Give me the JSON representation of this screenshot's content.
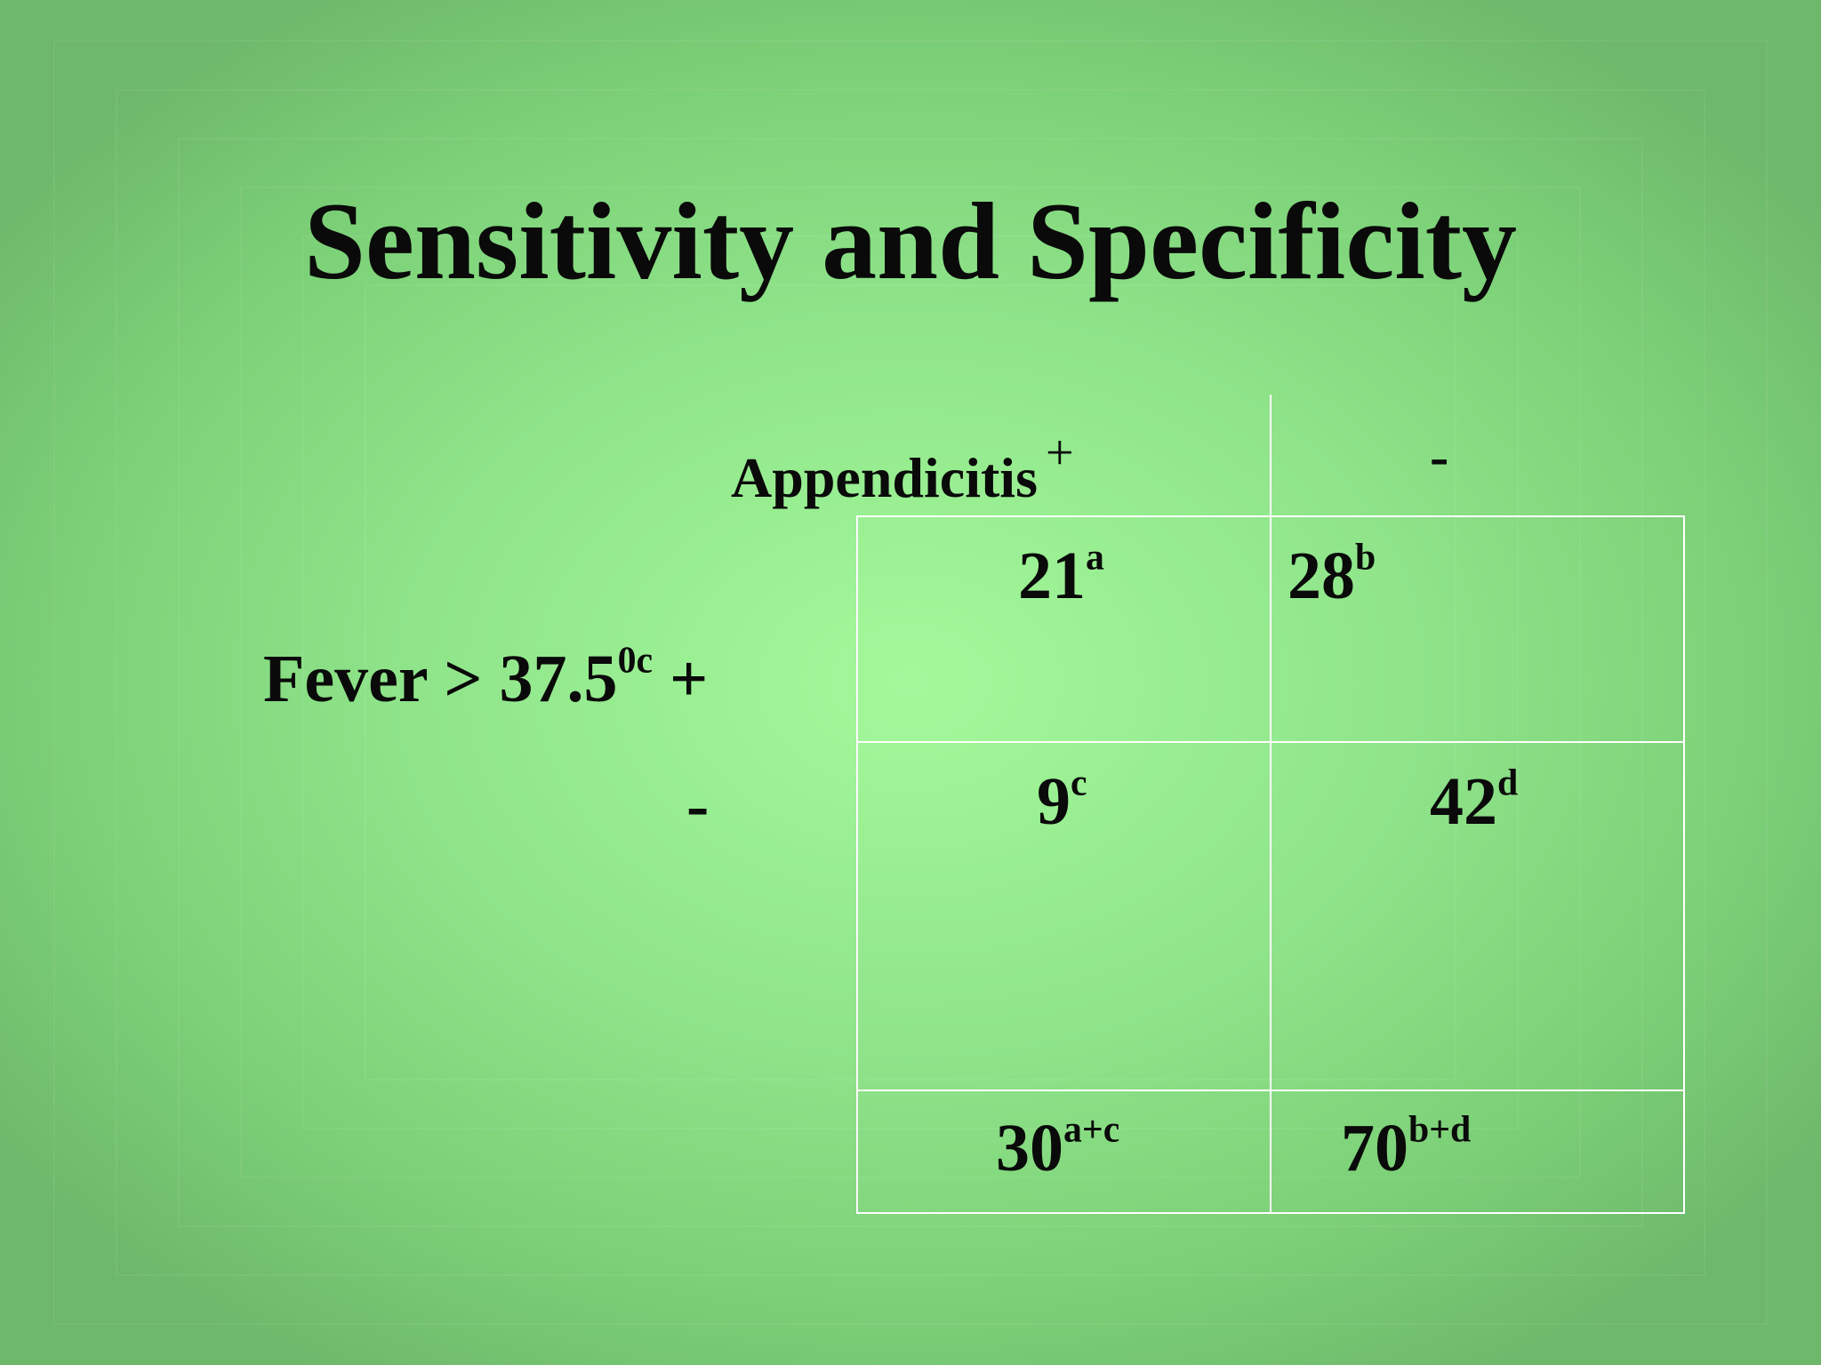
{
  "slide": {
    "title": "Sensitivity and Specificity"
  },
  "column_header": {
    "label": "Appendicitis",
    "positive": "+",
    "negative": "-"
  },
  "row_header": {
    "label": "Fever > 37.5",
    "unit_sup": "0c",
    "positive": "+",
    "negative": "-"
  },
  "table": {
    "a": {
      "value": "21",
      "sup": "a"
    },
    "b": {
      "value": "28",
      "sup": "b"
    },
    "c": {
      "value": "9",
      "sup": "c"
    },
    "d": {
      "value": "42",
      "sup": "d"
    },
    "total_ac": {
      "value": "30",
      "sup": "a+c"
    },
    "total_bd": {
      "value": "70",
      "sup": "b+d"
    }
  },
  "colors": {
    "background_center": "#a3f99a",
    "background_edge": "#6db86b",
    "grid_lines": "#ffffff",
    "text": "#0a0a0a"
  }
}
